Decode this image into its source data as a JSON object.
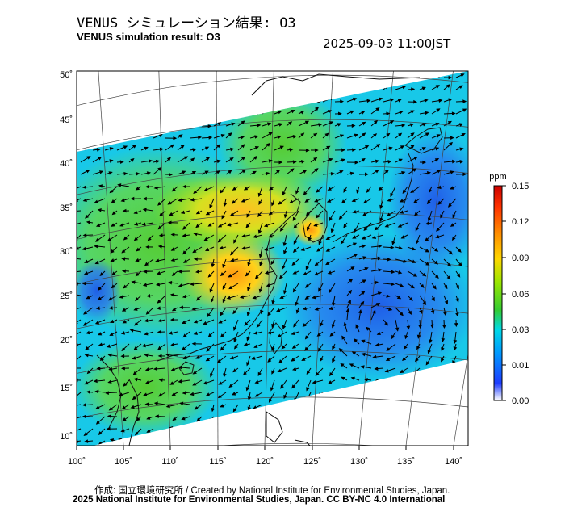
{
  "title_jp": "VENUS シミュレーション結果: O3",
  "title_en": "VENUS simulation result: O3",
  "datetime": "2025-09-03 11:00JST",
  "credit_line1": "作成: 国立環境研究所 / Created by National Institute for Environmental Studies, Japan.",
  "credit_line2": "2025 National Institute for Environmental Studies, Japan. CC BY-NC 4.0 International",
  "map": {
    "lon_ticks": [
      "100˚",
      "105˚",
      "110˚",
      "115˚",
      "120˚",
      "125˚",
      "130˚",
      "135˚",
      "140˚"
    ],
    "lat_ticks": [
      "50˚",
      "45˚",
      "40˚",
      "35˚",
      "30˚",
      "25˚",
      "20˚",
      "15˚",
      "10˚"
    ]
  },
  "colorbar": {
    "unit": "ppm",
    "labels": [
      "0.15",
      "0.12",
      "0.09",
      "0.06",
      "0.03",
      "0.01",
      "0.00"
    ],
    "colors": [
      "#ffffff",
      "#1e3cff",
      "#0099ff",
      "#00d9e6",
      "#33cc33",
      "#99e600",
      "#ffd700",
      "#ff8c00",
      "#ff3300",
      "#cc0000"
    ]
  }
}
